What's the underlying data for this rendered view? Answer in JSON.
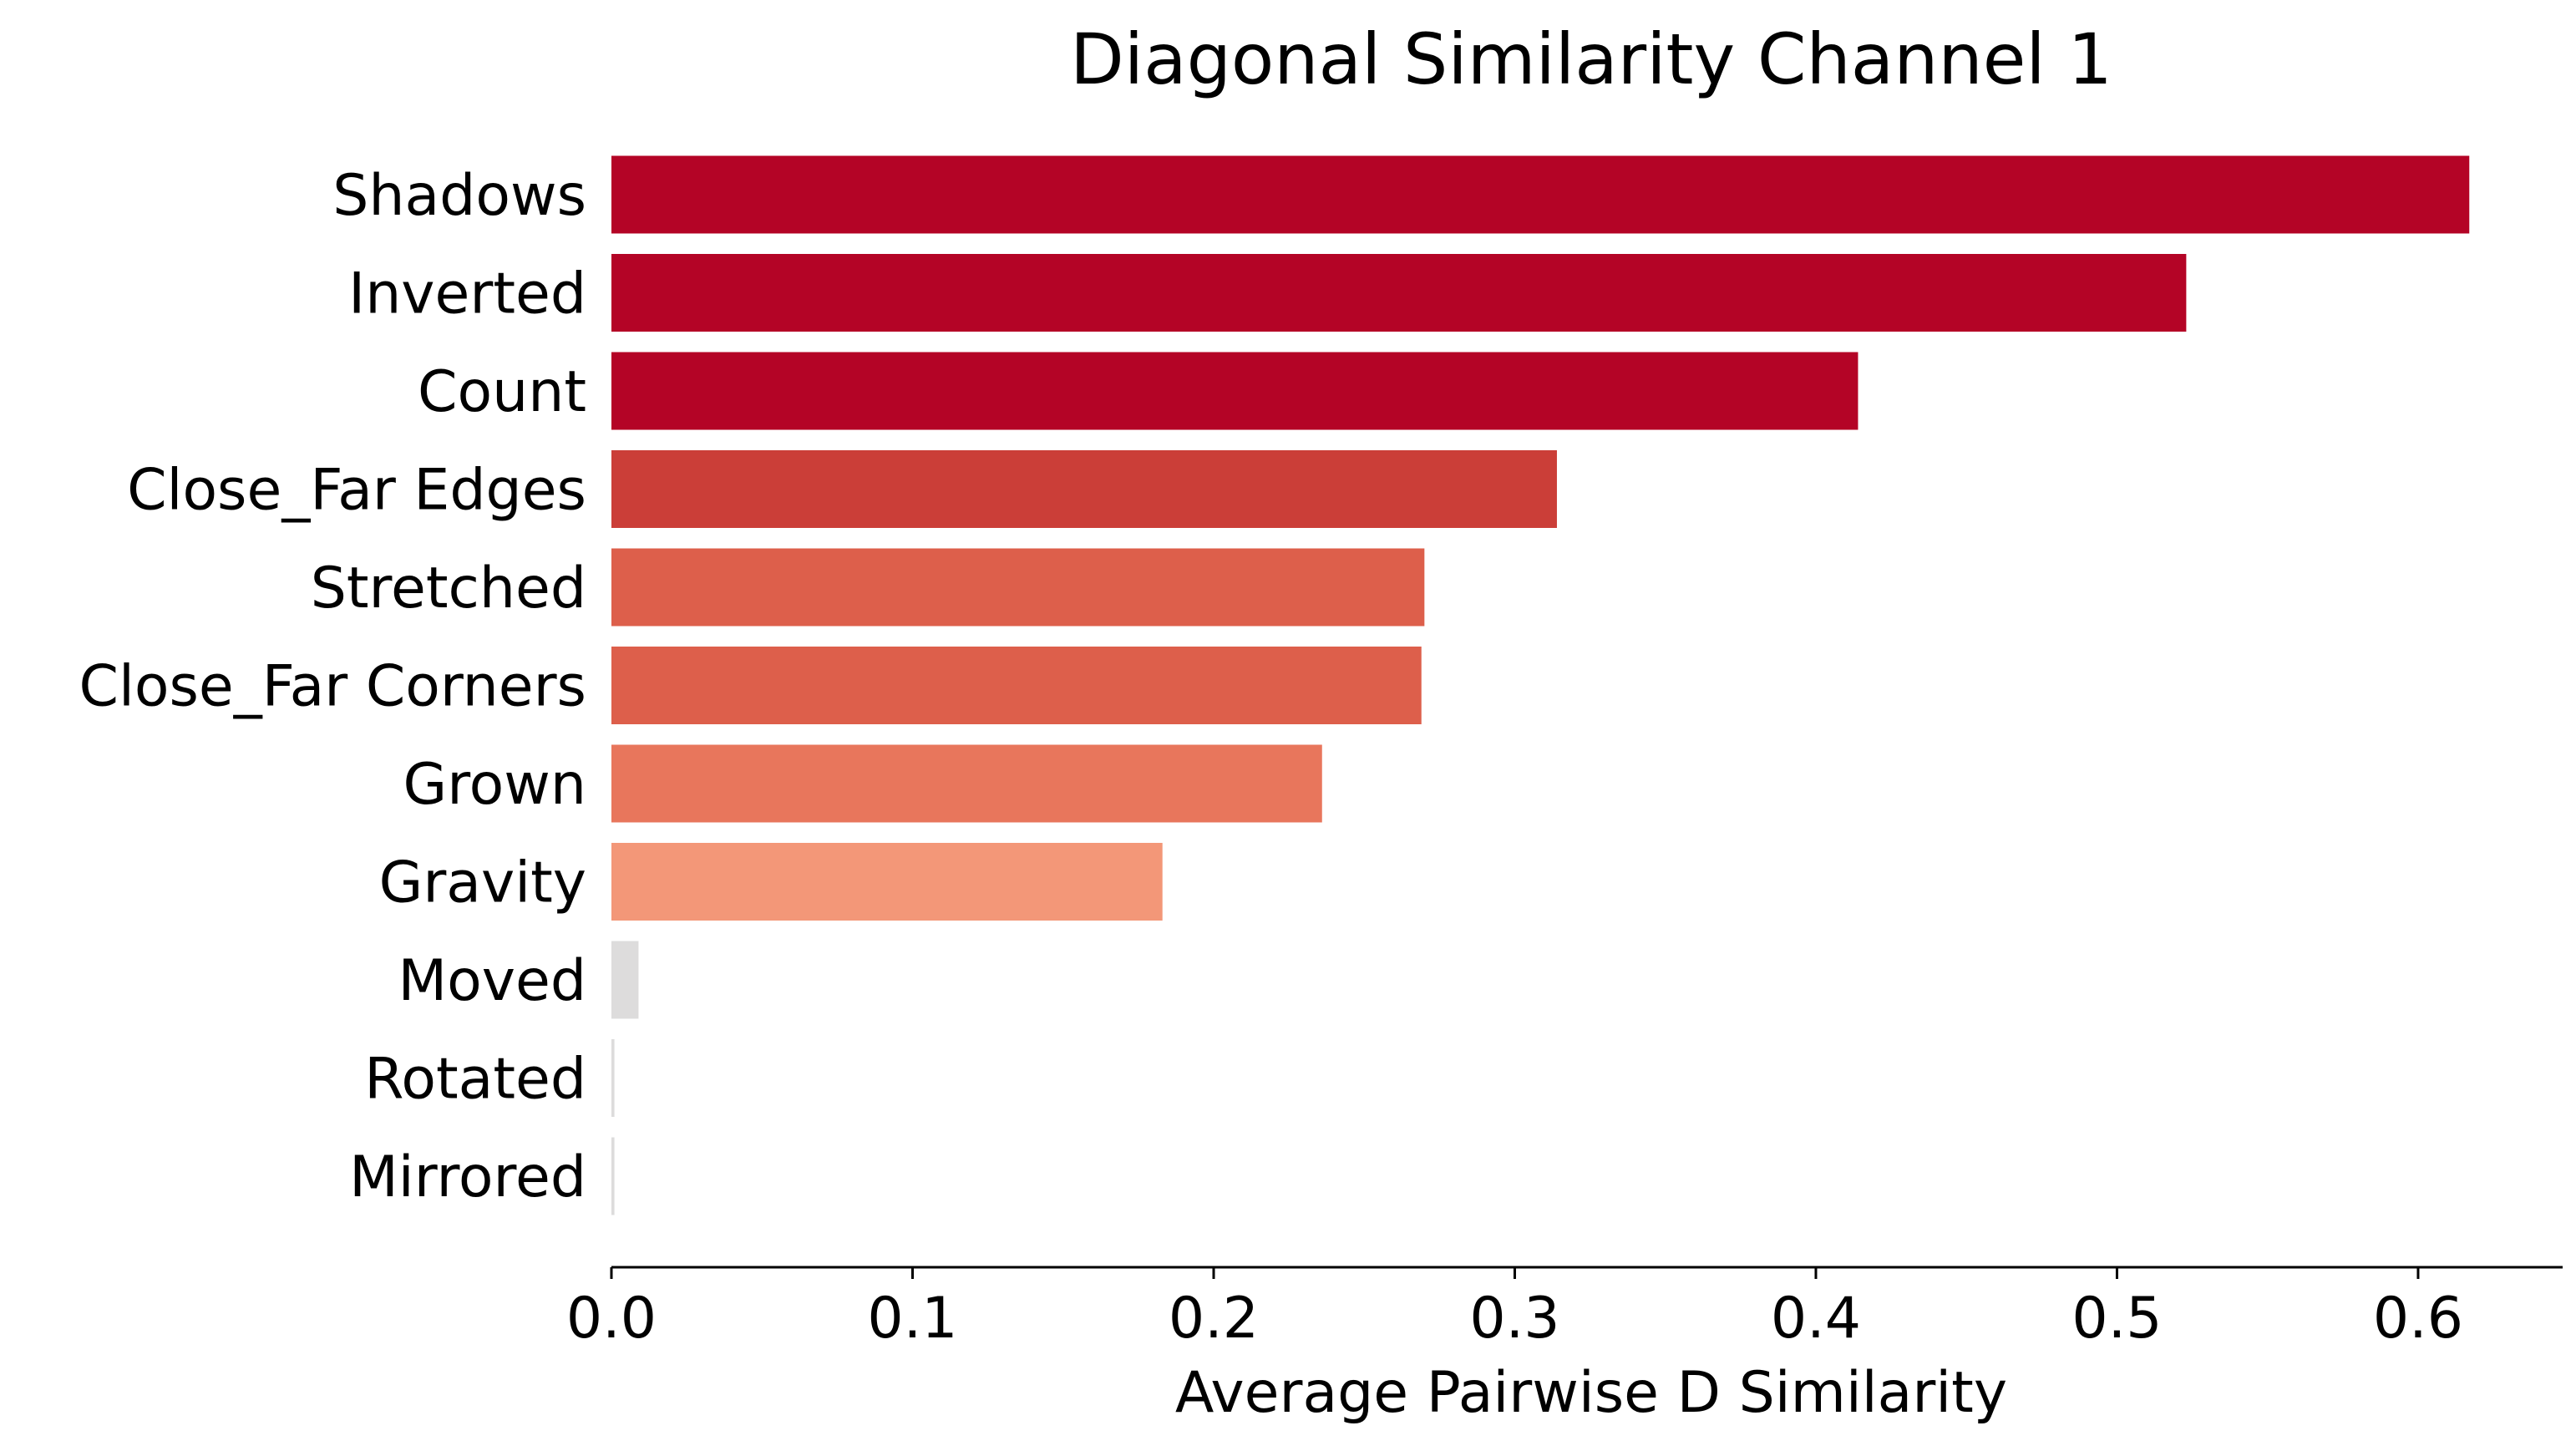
{
  "chart_data": {
    "type": "bar",
    "orientation": "horizontal",
    "title": "Diagonal Similarity Channel 1",
    "xlabel": "Average Pairwise D Similarity",
    "ylabel": "",
    "categories": [
      "Shadows",
      "Inverted",
      "Count",
      "Close_Far Edges",
      "Stretched",
      "Close_Far Corners",
      "Grown",
      "Gravity",
      "Moved",
      "Rotated",
      "Mirrored"
    ],
    "values": [
      0.617,
      0.523,
      0.414,
      0.314,
      0.27,
      0.269,
      0.236,
      0.183,
      0.009,
      0.001,
      0.001
    ],
    "colors": [
      "#b40426",
      "#b40426",
      "#b40426",
      "#cb3e38",
      "#dd5f4b",
      "#dd5f4b",
      "#e8765c",
      "#f39778",
      "#dddcdc",
      "#dddcdc",
      "#dddcdc"
    ],
    "xticks": [
      "0.0",
      "0.1",
      "0.2",
      "0.3",
      "0.4",
      "0.5",
      "0.6"
    ],
    "xlim": [
      0,
      0.648
    ],
    "grid": false,
    "legend": "none"
  }
}
